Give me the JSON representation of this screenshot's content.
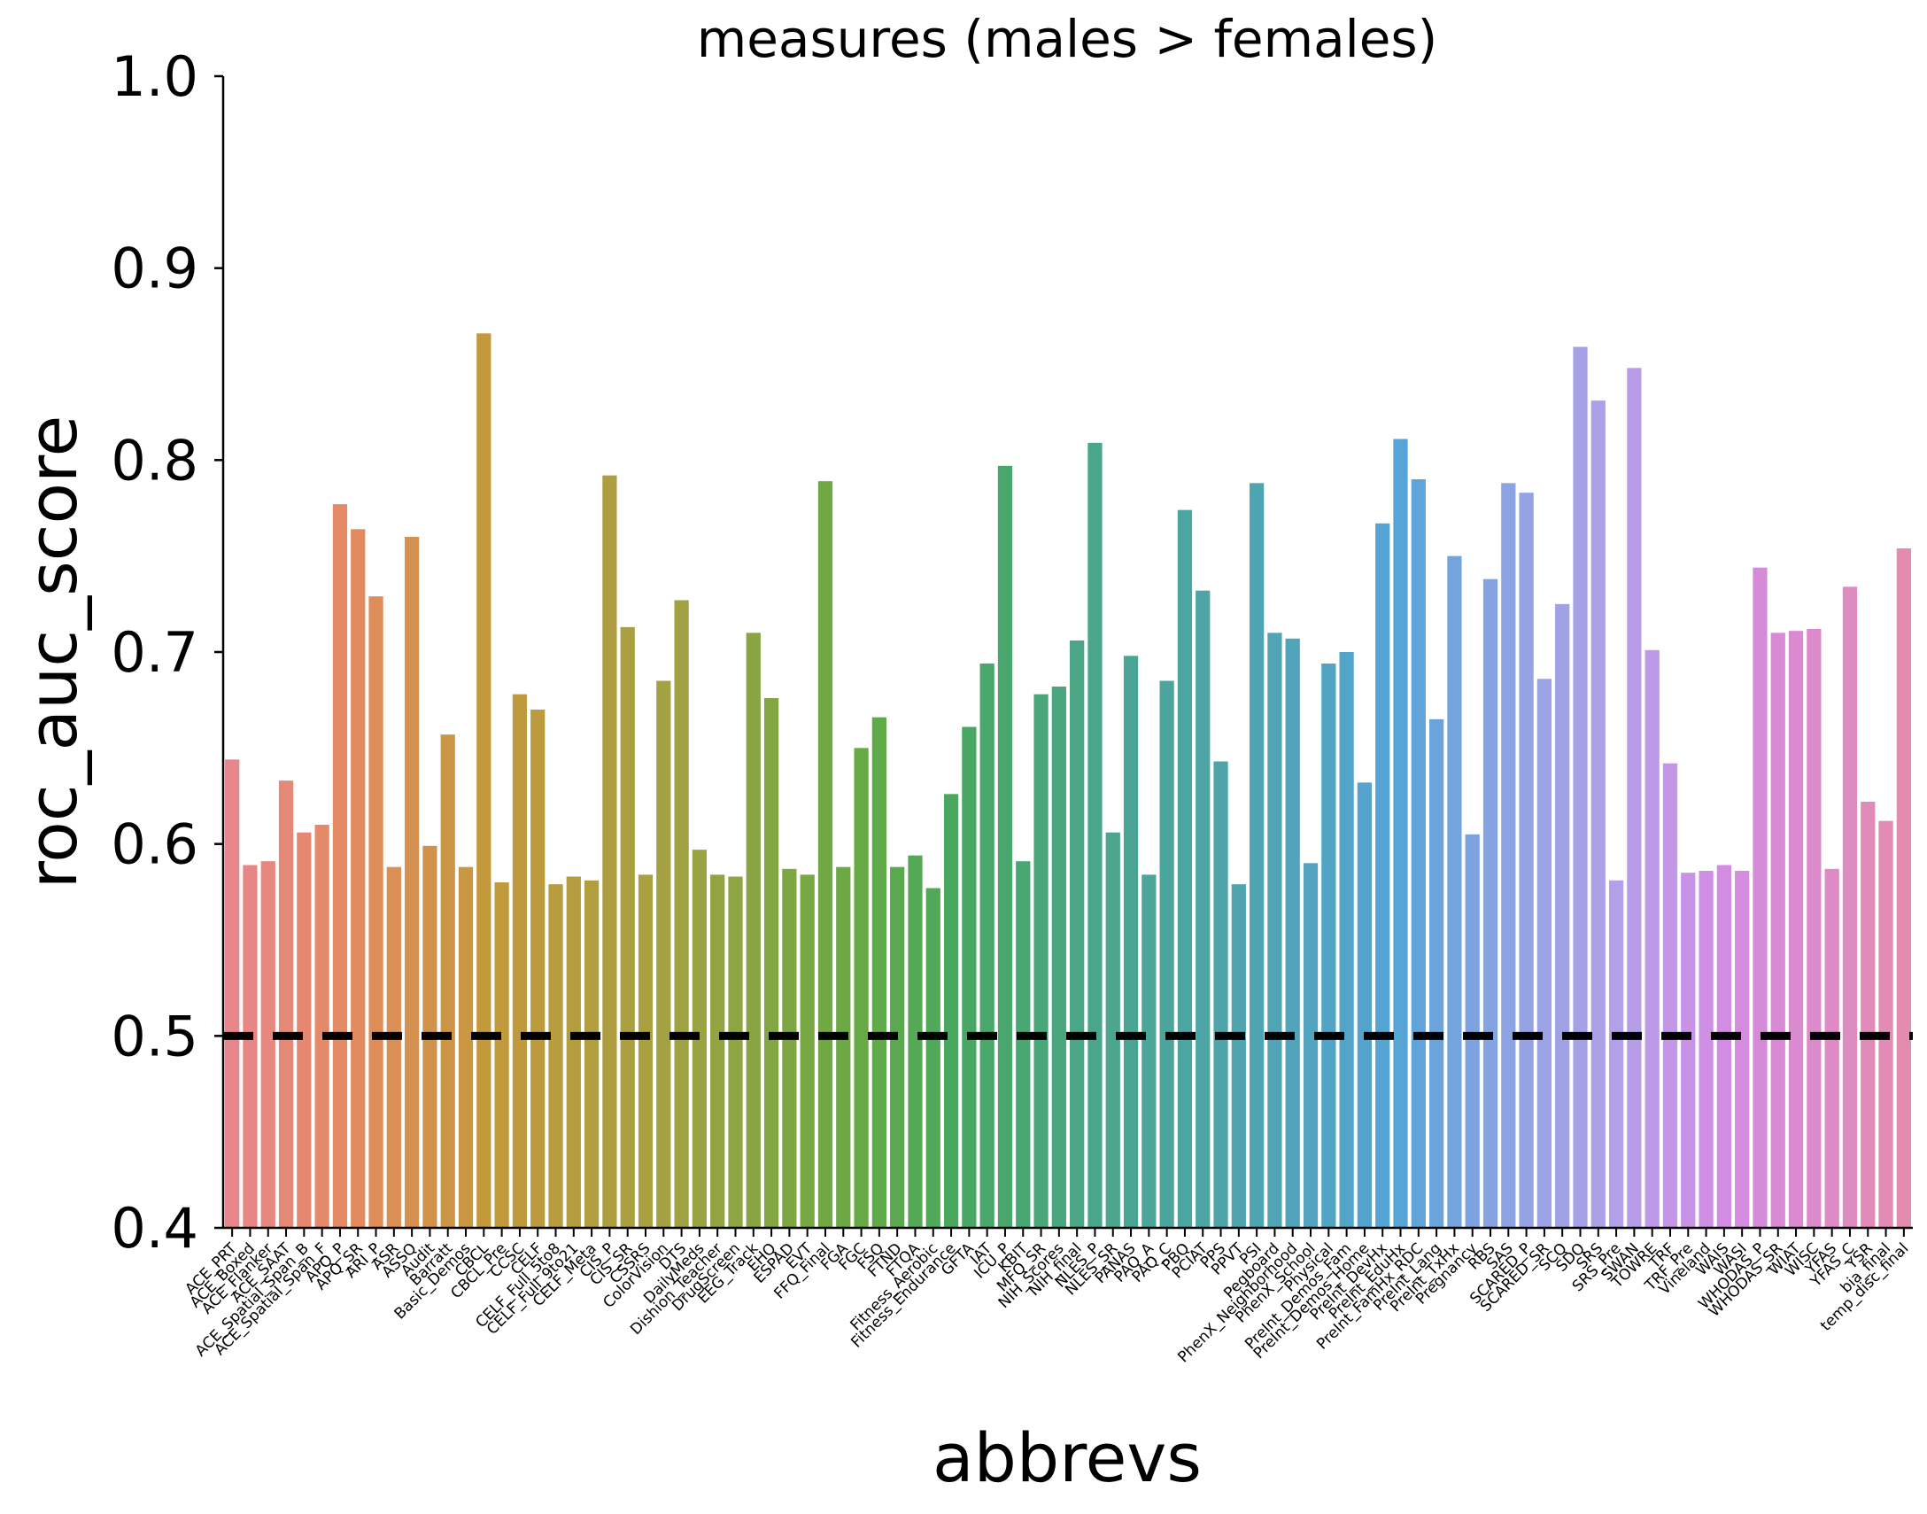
{
  "chart_data": {
    "type": "bar",
    "title": "measures (males > females)",
    "xlabel": "abbrevs",
    "ylabel": "roc_auc_score",
    "ylim": [
      0.4,
      1.0
    ],
    "yticks": [
      "0.4",
      "0.5",
      "0.6",
      "0.7",
      "0.8",
      "0.9",
      "1.0"
    ],
    "grid": false,
    "legend": "none",
    "reference_line": {
      "y": 0.5,
      "style": "dashed",
      "color": "#000000"
    },
    "palette": "husl",
    "categories": [
      "ACE_PRT",
      "ACE_Boxed",
      "ACE_Flanker",
      "ACE_SAAT",
      "ACE_Spatial_Span_B",
      "ACE_Spatial_Span_F",
      "APQ_P",
      "APQ_SR",
      "ARI_P",
      "ASR",
      "ASSQ",
      "Audit",
      "Barratt",
      "Basic_Demos",
      "CBCL",
      "CBCL_Pre",
      "CCSC",
      "CELF",
      "CELF_Full_5to8",
      "CELF_Full_9to21",
      "CELF_Meta",
      "CIS_P",
      "CIS_SR",
      "CSSRS",
      "ColorVision",
      "DTS",
      "DailyMeds",
      "Dishion_Teacher",
      "DrugScreen",
      "EEG_Track",
      "EHQ",
      "ESPAD",
      "EVT",
      "FFQ_Final",
      "FGA",
      "FGC",
      "FSQ",
      "FTND",
      "FTQA",
      "Fitness_Aerobic",
      "Fitness_Endurance",
      "GFTA",
      "IAT",
      "ICU_P",
      "KBIT",
      "MFQ_SR",
      "NIH_Scores",
      "NIH_final",
      "NLES_P",
      "NLES_SR",
      "PANAS",
      "PAQ_A",
      "PAQ_C",
      "PBQ",
      "PCIAT",
      "PPS",
      "PPVT",
      "PSI",
      "Pegboard",
      "PhenX_Neighborhood",
      "PhenX_School",
      "Physical",
      "PreInt_Demos_Fam",
      "PreInt_Demos_Home",
      "PreInt_DevHx",
      "PreInt_EduHx",
      "PreInt_FamHx_RDC",
      "PreInt_Lang",
      "PreInt_TxHx",
      "Pregnancy",
      "RBS",
      "SAS",
      "SCARED_P",
      "SCARED_SR",
      "SCQ",
      "SDQ",
      "SRS",
      "SRS_Pre",
      "SWAN",
      "TOWRE",
      "TRF",
      "TRF_Pre",
      "Vineland",
      "WAIS",
      "WASI",
      "WHODAS_P",
      "WHODAS_SR",
      "WIAT",
      "WISC",
      "YFAS",
      "YFAS_C",
      "YSR",
      "bia_final",
      "temp_disc_final"
    ],
    "values": [
      0.644,
      0.589,
      0.591,
      0.633,
      0.606,
      0.61,
      0.777,
      0.764,
      0.729,
      0.588,
      0.76,
      0.599,
      0.657,
      0.588,
      0.866,
      0.58,
      0.678,
      0.67,
      0.579,
      0.583,
      0.581,
      0.792,
      0.713,
      0.584,
      0.685,
      0.727,
      0.597,
      0.584,
      0.583,
      0.71,
      0.676,
      0.587,
      0.584,
      0.789,
      0.588,
      0.65,
      0.666,
      0.588,
      0.594,
      0.577,
      0.626,
      0.661,
      0.694,
      0.797,
      0.591,
      0.678,
      0.682,
      0.706,
      0.809,
      0.606,
      0.698,
      0.584,
      0.685,
      0.774,
      0.732,
      0.643,
      0.579,
      0.788,
      0.71,
      0.707,
      0.59,
      0.694,
      0.7,
      0.632,
      0.767,
      0.811,
      0.79,
      0.665,
      0.75,
      0.605,
      0.738,
      0.788,
      0.783,
      0.686,
      0.725,
      0.859,
      0.831,
      0.581,
      0.848,
      0.701,
      0.642,
      0.585,
      0.586,
      0.589,
      0.586,
      0.744,
      0.71,
      0.711,
      0.712,
      0.587,
      0.734,
      0.622,
      0.612,
      0.754
    ]
  }
}
